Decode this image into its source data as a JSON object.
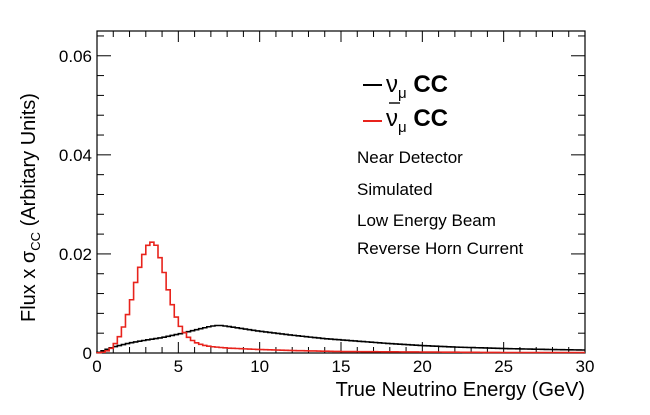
{
  "chart_data": {
    "type": "line",
    "plot_style": "step-histogram",
    "xlabel": "True Neutrino Energy (GeV)",
    "ylabel": {
      "prefix": "Flux x σ",
      "subscript": "CC",
      "suffix": " (Arbitary Units)"
    },
    "xlim": [
      0,
      30
    ],
    "ylim": [
      0,
      0.065
    ],
    "x_ticks": [
      0,
      5,
      10,
      15,
      20,
      25,
      30
    ],
    "y_ticks": [
      {
        "value": 0,
        "label": "0"
      },
      {
        "value": 0.02,
        "label": "0.02"
      },
      {
        "value": 0.04,
        "label": "0.04"
      },
      {
        "value": 0.06,
        "label": "0.06"
      }
    ],
    "grid": false,
    "legend": {
      "position": "top-right",
      "entries": [
        {
          "symbol": "ν",
          "subscript": "μ",
          "suffix": " CC",
          "bar": false,
          "color": "#000000"
        },
        {
          "symbol": "ν",
          "subscript": "μ",
          "suffix": " CC",
          "bar": true,
          "color": "#e8231c"
        }
      ]
    },
    "annotations": [
      "Near Detector",
      "Simulated",
      "Low Energy Beam",
      "Reverse Horn Current"
    ],
    "series": [
      {
        "name": "νμ CC",
        "color": "#000000",
        "x": [
          0,
          1,
          2,
          3,
          4,
          5,
          6,
          7,
          7.5,
          8,
          9,
          10,
          12,
          14,
          16,
          18,
          20,
          22,
          25,
          28,
          30
        ],
        "values": [
          0,
          0.0012,
          0.002,
          0.0026,
          0.0031,
          0.0038,
          0.0046,
          0.0054,
          0.0056,
          0.0054,
          0.0049,
          0.0044,
          0.0036,
          0.0029,
          0.0024,
          0.0019,
          0.0015,
          0.0012,
          0.0009,
          0.0007,
          0.0006
        ]
      },
      {
        "name": "ν̄μ CC",
        "color": "#e8231c",
        "x": [
          0,
          0.5,
          1,
          1.5,
          2,
          2.5,
          3,
          3.3,
          3.6,
          4,
          4.5,
          5,
          5.5,
          6,
          6.5,
          7,
          8,
          10,
          12,
          15,
          20,
          25,
          30
        ],
        "values": [
          0,
          0.0002,
          0.0012,
          0.004,
          0.009,
          0.016,
          0.0212,
          0.0225,
          0.022,
          0.018,
          0.011,
          0.006,
          0.0035,
          0.0022,
          0.0016,
          0.0013,
          0.001,
          0.0007,
          0.0005,
          0.0003,
          0.0002,
          0.0001,
          0.0001
        ]
      }
    ]
  }
}
